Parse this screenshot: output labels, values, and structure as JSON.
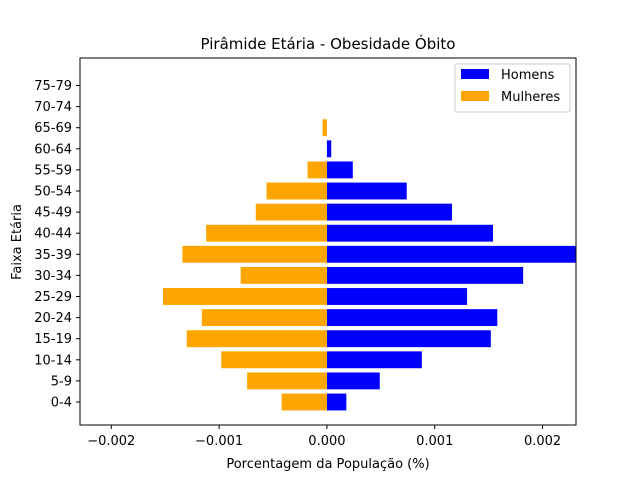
{
  "chart_data": {
    "type": "bar",
    "orientation": "horizontal",
    "title": "Pirâmide Etária - Obesidade Óbito",
    "xlabel": "Porcentagem da População (%)",
    "ylabel": "Faixa Etária",
    "xlim": [
      -0.00229,
      0.00231
    ],
    "x_ticks": [
      -0.002,
      -0.001,
      0.0,
      0.001,
      0.002
    ],
    "x_tick_labels": [
      "−0.002",
      "−0.001",
      "0.000",
      "0.001",
      "0.002"
    ],
    "categories": [
      "0-4",
      "5-9",
      "10-14",
      "15-19",
      "20-24",
      "25-29",
      "30-34",
      "35-39",
      "40-44",
      "45-49",
      "50-54",
      "55-59",
      "60-64",
      "65-69",
      "70-74",
      "75-79"
    ],
    "series": [
      {
        "name": "Homens",
        "color": "#0000ff",
        "values": [
          0.00018,
          0.00049,
          0.00088,
          0.00152,
          0.00158,
          0.0013,
          0.00182,
          0.00231,
          0.00154,
          0.00116,
          0.00074,
          0.00024,
          4e-05,
          0.0,
          0.0,
          0.0
        ]
      },
      {
        "name": "Mulheres",
        "color": "#ffa500",
        "values": [
          -0.00042,
          -0.00074,
          -0.00098,
          -0.0013,
          -0.00116,
          -0.00152,
          -0.0008,
          -0.00134,
          -0.00112,
          -0.00066,
          -0.00056,
          -0.00018,
          0.0,
          -4e-05,
          0.0,
          0.0
        ]
      }
    ],
    "legend_position": "upper-right",
    "grid": false
  }
}
